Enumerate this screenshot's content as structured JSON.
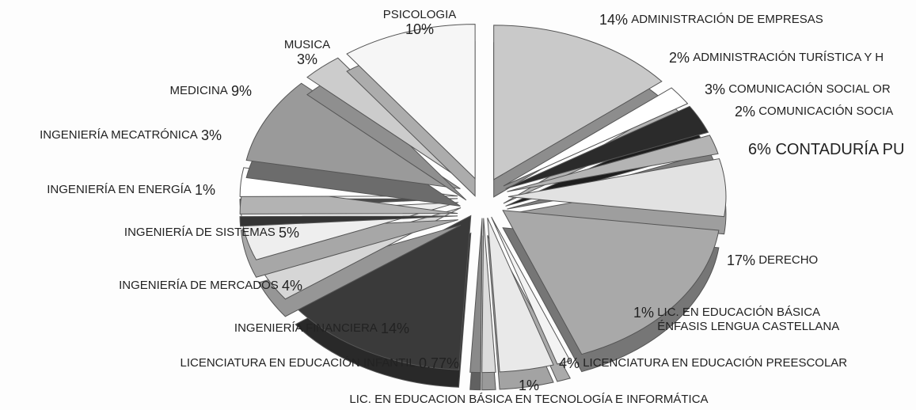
{
  "chart_data": {
    "type": "pie",
    "categories": [
      "ADMINISTRACIÓN DE EMPRESAS",
      "ADMINISTRACIÓN TURÍSTICA Y H",
      "COMUNICACIÓN SOCIAL OR",
      "COMUNICACIÓN SOCIA",
      "CONTADURÍA PU",
      "DERECHO",
      "LIC. EN EDUCACIÓN BÁSICA\nÉNFASIS LENGUA CASTELLANA",
      "LICENCIATURA EN EDUCACIÓN PREESCOLAR",
      "LIC. EN EDUCACION BÁSICA EN TECNOLOGÍA E INFORMÁTICA",
      "LICENCIATURA EN EDUCACIÓN INFANTIL",
      "INGENIERÍA FINANCIERA",
      "INGENIERÍA DE MERCADOS",
      "INGENIERÍA DE SISTEMAS",
      "INGENIERÍA EN ENERGÍA",
      "INGENIERÍA MECATRÓNICA",
      "MEDICINA",
      "MUSICA",
      "PSICOLOGIA"
    ],
    "values": [
      14,
      2,
      3,
      2,
      6,
      17,
      1,
      4,
      1,
      0.77,
      14,
      4,
      5,
      1,
      3,
      9,
      3,
      10
    ],
    "value_labels": [
      "14%",
      "2%",
      "3%",
      "2%",
      "6%",
      "17%",
      "1%",
      "4%",
      "1%",
      "0.77%",
      "14%",
      "4%",
      "5%",
      "1%",
      "3%",
      "9%",
      "3%",
      "10%"
    ],
    "colors": [
      "#c9c9c9",
      "#ffffff",
      "#2b2b2b",
      "#b4b4b4",
      "#e2e2e2",
      "#a9a9a9",
      "#f3f3f3",
      "#e9e9e9",
      "#dcdcdc",
      "#8a8a8a",
      "#3a3a3a",
      "#d6d6d6",
      "#eeeeee",
      "#4a4a4a",
      "#ffffff",
      "#9a9a9a",
      "#cccccc",
      "#f6f6f6"
    ]
  }
}
